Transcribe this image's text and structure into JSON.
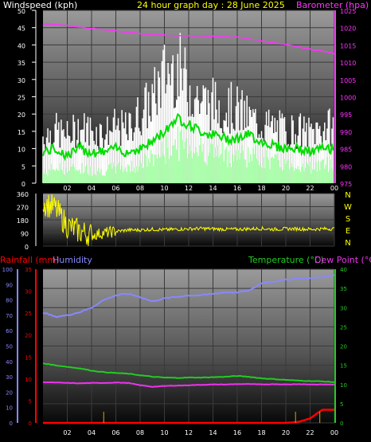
{
  "panel1": {
    "title_left": "Windspeed (kph)",
    "title_center": "24 hour graph day : 28 June 2025",
    "title_right": "Barometer (hpa)",
    "left_ticks": [
      "0",
      "5",
      "10",
      "15",
      "20",
      "25",
      "30",
      "35",
      "40",
      "45",
      "50"
    ],
    "right_ticks": [
      "975",
      "980",
      "985",
      "990",
      "995",
      "1000",
      "1005",
      "1010",
      "1015",
      "1020",
      "1025"
    ]
  },
  "panel2": {
    "left_ticks": [
      "0",
      "90",
      "180",
      "270",
      "360"
    ],
    "right_labels": [
      "N",
      "W",
      "S",
      "E",
      "N"
    ]
  },
  "panel3": {
    "title_rain": "Rainfall (mm)",
    "title_humidity": "Humidity",
    "title_temp": "Temperature (°C)",
    "title_dew": "Dew Point (°C)",
    "humidity_ticks": [
      "0",
      "10",
      "20",
      "30",
      "40",
      "50",
      "60",
      "70",
      "80",
      "90",
      "100"
    ],
    "rain_ticks": [
      "0",
      "5",
      "10",
      "15",
      "20",
      "25",
      "30",
      "35"
    ],
    "temp_ticks": [
      "0",
      "5",
      "10",
      "15",
      "20",
      "25",
      "30",
      "35",
      "40"
    ]
  },
  "x_ticks": [
    "02",
    "04",
    "06",
    "08",
    "10",
    "12",
    "14",
    "16",
    "18",
    "20",
    "22",
    "00"
  ],
  "colors": {
    "gust": "#ffffff",
    "windspeed": "#00dd00",
    "avg_wind": "#aaffaa",
    "barometer": "#ff33ff",
    "direction": "#ffff00",
    "humidity": "#8888ff",
    "temperature": "#22cc22",
    "dewpoint": "#ee33ee",
    "rainfall": "#ff0000",
    "rain_tick": "#ccaa00"
  },
  "chart_data": [
    {
      "type": "line",
      "title": "24 hour graph day : 28 June 2025",
      "ylabel_left": "Windspeed (kph)",
      "ylabel_right": "Barometer (hpa)",
      "ylim_left": [
        0,
        50
      ],
      "ylim_right": [
        975,
        1025
      ],
      "x": [
        "00",
        "01",
        "02",
        "03",
        "04",
        "05",
        "06",
        "07",
        "08",
        "09",
        "10",
        "11",
        "12",
        "13",
        "14",
        "15",
        "16",
        "17",
        "18",
        "19",
        "20",
        "21",
        "22",
        "23",
        "00"
      ],
      "series": [
        {
          "name": "Windspeed (kph)",
          "values": [
            9,
            10,
            8,
            10,
            9,
            9,
            10,
            9,
            10,
            12,
            15,
            19,
            17,
            15,
            14,
            13,
            13,
            14,
            12,
            11,
            10,
            10,
            9,
            10,
            10
          ],
          "gust": [
            16,
            18,
            16,
            19,
            18,
            17,
            19,
            18,
            24,
            28,
            37,
            40,
            33,
            28,
            27,
            26,
            25,
            22,
            20,
            19,
            18,
            18,
            17,
            19,
            19
          ],
          "avg": [
            3,
            5,
            4,
            5,
            4,
            4,
            5,
            5,
            6,
            8,
            10,
            13,
            12,
            11,
            10,
            9,
            9,
            9,
            8,
            7,
            6,
            6,
            5,
            6,
            6
          ]
        },
        {
          "name": "Barometer (hpa)",
          "values": [
            1021,
            1021,
            1020.6,
            1020.2,
            1019.8,
            1019.4,
            1019,
            1018.6,
            1018.3,
            1018,
            1017.8,
            1017.7,
            1017.6,
            1017.6,
            1017.5,
            1017.4,
            1017.2,
            1016.8,
            1016.2,
            1015.6,
            1015,
            1014.4,
            1013.8,
            1013.2,
            1012.5
          ]
        }
      ]
    },
    {
      "type": "scatter",
      "ylim": [
        0,
        360
      ],
      "x": [
        "00",
        "01",
        "02",
        "03",
        "04",
        "05",
        "06",
        "07",
        "08",
        "09",
        "10",
        "11",
        "12",
        "13",
        "14",
        "15",
        "16",
        "17",
        "18",
        "19",
        "20",
        "21",
        "22",
        "23",
        "00"
      ],
      "series": [
        {
          "name": "Wind Direction",
          "values": [
            300,
            260,
            140,
            100,
            75,
            90,
            100,
            110,
            110,
            115,
            112,
            115,
            118,
            120,
            118,
            115,
            115,
            118,
            120,
            115,
            118,
            118,
            115,
            118,
            118
          ]
        }
      ]
    },
    {
      "type": "line",
      "ylim_humidity": [
        0,
        100
      ],
      "ylim_rain": [
        0,
        35
      ],
      "ylim_temp": [
        0,
        40
      ],
      "x": [
        "00",
        "01",
        "02",
        "03",
        "04",
        "05",
        "06",
        "07",
        "08",
        "09",
        "10",
        "11",
        "12",
        "13",
        "14",
        "15",
        "16",
        "17",
        "18",
        "19",
        "20",
        "21",
        "22",
        "23",
        "00"
      ],
      "series": [
        {
          "name": "Humidity",
          "values": [
            72,
            69,
            70,
            72,
            75,
            80,
            83,
            84,
            82,
            79,
            81,
            82,
            83,
            83,
            84,
            85,
            85,
            86,
            91,
            92,
            93,
            94,
            94,
            95,
            96
          ]
        },
        {
          "name": "Temperature (°C)",
          "values": [
            15.5,
            15,
            14.6,
            14.2,
            13.6,
            13.2,
            13,
            12.8,
            12.4,
            12,
            11.8,
            11.7,
            11.8,
            11.8,
            11.9,
            12,
            12.2,
            12,
            11.6,
            11.4,
            11.2,
            11,
            10.9,
            10.8,
            10.6
          ]
        },
        {
          "name": "Dew Point (°C)",
          "values": [
            10.6,
            10.5,
            10.4,
            10.3,
            10.4,
            10.4,
            10.5,
            10.4,
            9.8,
            9.4,
            9.6,
            9.7,
            9.8,
            9.9,
            10,
            10,
            10.1,
            10.1,
            10,
            10.1,
            10,
            10.1,
            10,
            10,
            10
          ]
        },
        {
          "name": "Rainfall (mm)",
          "values": [
            0,
            0,
            0,
            0,
            0,
            0,
            0,
            0,
            0,
            0,
            0,
            0,
            0,
            0,
            0,
            0,
            0,
            0,
            0,
            0,
            0,
            0.2,
            1,
            3,
            3
          ]
        }
      ]
    }
  ]
}
